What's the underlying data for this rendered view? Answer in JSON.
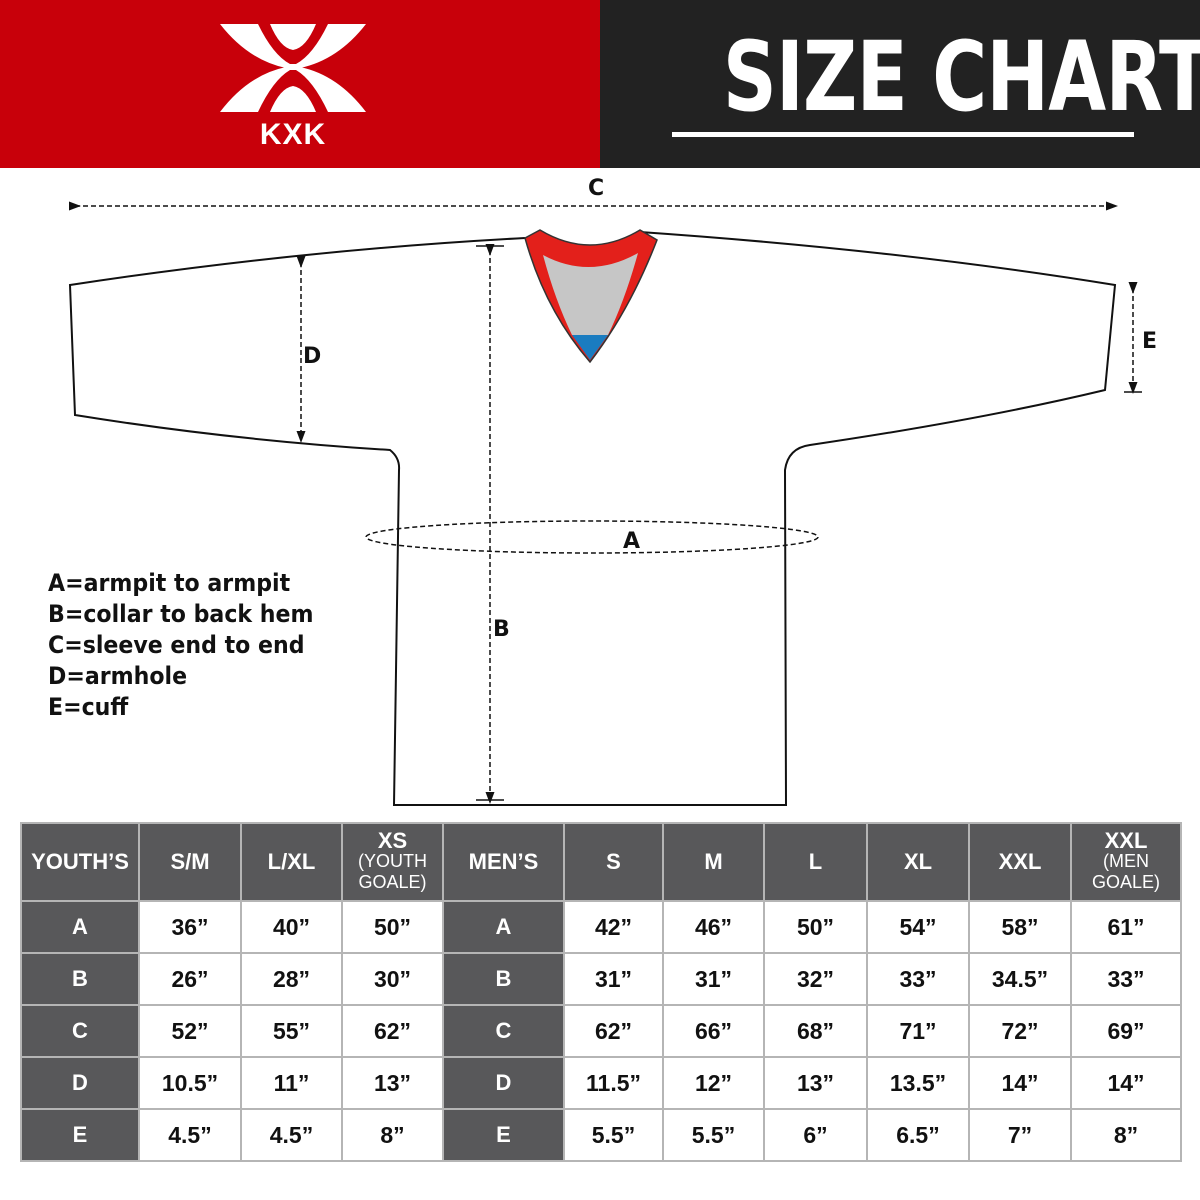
{
  "brand": {
    "name": "KXK",
    "accent": "#c8000a",
    "dark": "#222222"
  },
  "title": "SIZE CHART",
  "diagram": {
    "labels": {
      "a": "A",
      "b": "B",
      "c": "C",
      "d": "D",
      "e": "E"
    }
  },
  "legend": [
    "A=armpit to armpit",
    "B=collar to back hem",
    "C=sleeve end to end",
    "D=armhole",
    "E=cuff"
  ],
  "table": {
    "headers": [
      {
        "main": "YOUTH’S"
      },
      {
        "main": "S/M"
      },
      {
        "main": "L/XL"
      },
      {
        "main": "XS",
        "sub": "(YOUTH GOALE)"
      },
      {
        "main": "MEN’S"
      },
      {
        "main": "S"
      },
      {
        "main": "M"
      },
      {
        "main": "L"
      },
      {
        "main": "XL"
      },
      {
        "main": "XXL"
      },
      {
        "main": "XXL",
        "sub": "(MEN GOALE)"
      }
    ],
    "rows": [
      [
        "A",
        "36”",
        "40”",
        "50”",
        "A",
        "42”",
        "46”",
        "50”",
        "54”",
        "58”",
        "61”"
      ],
      [
        "B",
        "26”",
        "28”",
        "30”",
        "B",
        "31”",
        "31”",
        "32”",
        "33”",
        "34.5”",
        "33”"
      ],
      [
        "C",
        "52”",
        "55”",
        "62”",
        "C",
        "62”",
        "66”",
        "68”",
        "71”",
        "72”",
        "69”"
      ],
      [
        "D",
        "10.5”",
        "11”",
        "13”",
        "D",
        "11.5”",
        "12”",
        "13”",
        "13.5”",
        "14”",
        "14”"
      ],
      [
        "E",
        "4.5”",
        "4.5”",
        "8”",
        "E",
        "5.5”",
        "5.5”",
        "6”",
        "6.5”",
        "7”",
        "8”"
      ]
    ]
  }
}
